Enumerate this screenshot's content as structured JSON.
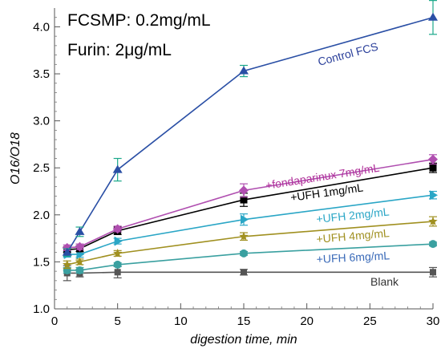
{
  "chart_data": {
    "type": "line",
    "title": "",
    "xlabel": "digestion time, min",
    "ylabel": "O16/O18",
    "xlim": [
      0,
      30
    ],
    "ylim": [
      1.0,
      4.2
    ],
    "xticks": [
      "0",
      "5",
      "10",
      "15",
      "20",
      "25",
      "30"
    ],
    "yticks": [
      "1.0",
      "1.5",
      "2.0",
      "2.5",
      "3.0",
      "3.5",
      "4.0"
    ],
    "x": [
      1,
      2,
      5,
      15,
      30
    ],
    "annotations": [
      "FCSMP: 0.2mg/mL",
      "Furin: 2μg/mL"
    ],
    "series": [
      {
        "name": "Control FCS",
        "color": "#2a4fa5",
        "marker": "triangle-up",
        "values": [
          1.6,
          1.82,
          2.48,
          3.53,
          4.1
        ],
        "errors": [
          0.04,
          0.05,
          0.12,
          0.06,
          0.18
        ]
      },
      {
        "name": "+fondaparinux 7mg/mL",
        "color": "#b04fb0",
        "marker": "diamond",
        "values": [
          1.65,
          1.66,
          1.85,
          2.26,
          2.59
        ],
        "errors": [
          0.03,
          0.03,
          0.03,
          0.07,
          0.05
        ]
      },
      {
        "name": "+UFH 1mg/mL",
        "color": "#000000",
        "marker": "square",
        "values": [
          1.63,
          1.64,
          1.83,
          2.16,
          2.5
        ],
        "errors": [
          0.03,
          0.03,
          0.04,
          0.07,
          0.05
        ]
      },
      {
        "name": "+UFH 2mg/mL",
        "color": "#2aa6c6",
        "marker": "triangle-right",
        "values": [
          1.58,
          1.58,
          1.72,
          1.95,
          2.21
        ],
        "errors": [
          0.03,
          0.03,
          0.03,
          0.06,
          0.04
        ]
      },
      {
        "name": "+UFH 4mg/mL",
        "color": "#a09020",
        "marker": "star",
        "values": [
          1.47,
          1.5,
          1.59,
          1.77,
          1.93
        ],
        "errors": [
          0.04,
          0.03,
          0.03,
          0.04,
          0.05
        ]
      },
      {
        "name": "+UFH 6mg/mL",
        "color": "#3aa0a0",
        "marker": "circle",
        "values": [
          1.41,
          1.41,
          1.47,
          1.59,
          1.69
        ],
        "errors": [
          0.03,
          0.03,
          0.02,
          0.02,
          0.02
        ]
      },
      {
        "name": "Blank",
        "color": "#555555",
        "marker": "square-small",
        "values": [
          1.38,
          1.38,
          1.39,
          1.39,
          1.39
        ],
        "errors": [
          0.08,
          0.04,
          0.06,
          0.03,
          0.05
        ]
      }
    ],
    "series_labels": [
      {
        "text": "Control FCS",
        "color": "#2a3f9a",
        "rotate": -15
      },
      {
        "text": "+fondaparinux 7mg/mL",
        "color": "#b0309a",
        "rotate": -9
      },
      {
        "text": "+UFH 1mg/mL",
        "color": "#000000",
        "rotate": -8
      },
      {
        "text": "+UFH 2mg/mL",
        "color": "#2aa6c6",
        "rotate": -6
      },
      {
        "text": "+UFH 4mg/mL",
        "color": "#a09020",
        "rotate": -5
      },
      {
        "text": "+UFH 6mg/mL",
        "color": "#3a6ab8",
        "rotate": -3
      },
      {
        "text": "Blank",
        "color": "#333333",
        "rotate": 0
      }
    ],
    "grid": false
  }
}
